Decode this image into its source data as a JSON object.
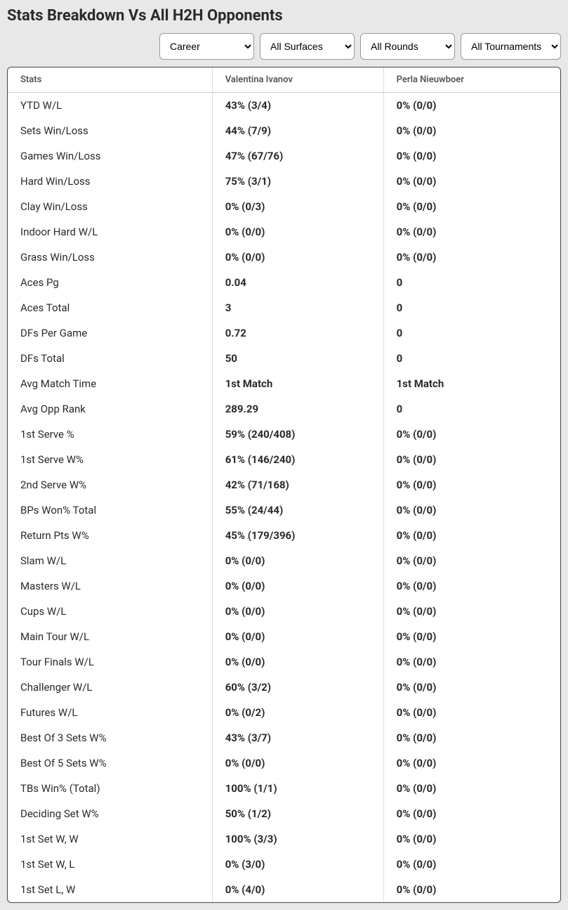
{
  "title": "Stats Breakdown Vs All H2H Opponents",
  "filters": {
    "timeframe": {
      "selected": "Career"
    },
    "surface": {
      "selected": "All Surfaces"
    },
    "round": {
      "selected": "All Rounds"
    },
    "tournament": {
      "selected": "All Tournaments"
    }
  },
  "table": {
    "columns": [
      "Stats",
      "Valentina Ivanov",
      "Perla Nieuwboer"
    ],
    "rows": [
      [
        "YTD W/L",
        "43% (3/4)",
        "0% (0/0)"
      ],
      [
        "Sets Win/Loss",
        "44% (7/9)",
        "0% (0/0)"
      ],
      [
        "Games Win/Loss",
        "47% (67/76)",
        "0% (0/0)"
      ],
      [
        "Hard Win/Loss",
        "75% (3/1)",
        "0% (0/0)"
      ],
      [
        "Clay Win/Loss",
        "0% (0/3)",
        "0% (0/0)"
      ],
      [
        "Indoor Hard W/L",
        "0% (0/0)",
        "0% (0/0)"
      ],
      [
        "Grass Win/Loss",
        "0% (0/0)",
        "0% (0/0)"
      ],
      [
        "Aces Pg",
        "0.04",
        "0"
      ],
      [
        "Aces Total",
        "3",
        "0"
      ],
      [
        "DFs Per Game",
        "0.72",
        "0"
      ],
      [
        "DFs Total",
        "50",
        "0"
      ],
      [
        "Avg Match Time",
        "1st Match",
        "1st Match"
      ],
      [
        "Avg Opp Rank",
        "289.29",
        "0"
      ],
      [
        "1st Serve %",
        "59% (240/408)",
        "0% (0/0)"
      ],
      [
        "1st Serve W%",
        "61% (146/240)",
        "0% (0/0)"
      ],
      [
        "2nd Serve W%",
        "42% (71/168)",
        "0% (0/0)"
      ],
      [
        "BPs Won% Total",
        "55% (24/44)",
        "0% (0/0)"
      ],
      [
        "Return Pts W%",
        "45% (179/396)",
        "0% (0/0)"
      ],
      [
        "Slam W/L",
        "0% (0/0)",
        "0% (0/0)"
      ],
      [
        "Masters W/L",
        "0% (0/0)",
        "0% (0/0)"
      ],
      [
        "Cups W/L",
        "0% (0/0)",
        "0% (0/0)"
      ],
      [
        "Main Tour W/L",
        "0% (0/0)",
        "0% (0/0)"
      ],
      [
        "Tour Finals W/L",
        "0% (0/0)",
        "0% (0/0)"
      ],
      [
        "Challenger W/L",
        "60% (3/2)",
        "0% (0/0)"
      ],
      [
        "Futures W/L",
        "0% (0/2)",
        "0% (0/0)"
      ],
      [
        "Best Of 3 Sets W%",
        "43% (3/7)",
        "0% (0/0)"
      ],
      [
        "Best Of 5 Sets W%",
        "0% (0/0)",
        "0% (0/0)"
      ],
      [
        "TBs Win% (Total)",
        "100% (1/1)",
        "0% (0/0)"
      ],
      [
        "Deciding Set W%",
        "50% (1/2)",
        "0% (0/0)"
      ],
      [
        "1st Set W, W",
        "100% (3/3)",
        "0% (0/0)"
      ],
      [
        "1st Set W, L",
        "0% (3/0)",
        "0% (0/0)"
      ],
      [
        "1st Set L, W",
        "0% (4/0)",
        "0% (0/0)"
      ]
    ]
  }
}
